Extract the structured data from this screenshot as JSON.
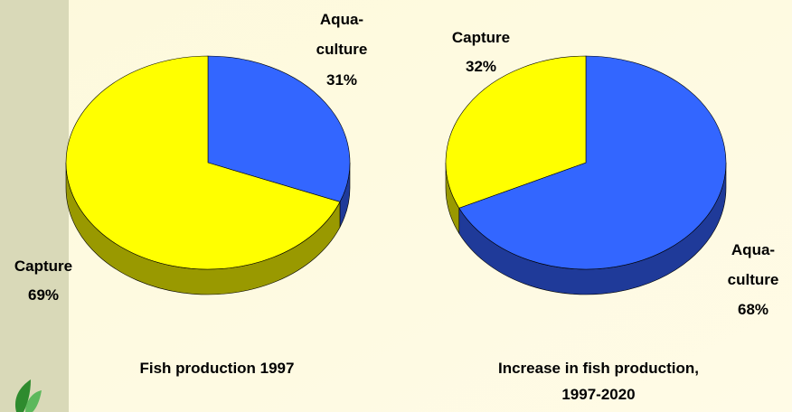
{
  "chart_data": [
    {
      "type": "pie",
      "title": "Fish production 1997",
      "categories": [
        "Aqua-\nculture",
        "Capture"
      ],
      "values": [
        31,
        69
      ],
      "value_labels": [
        "31%",
        "69%"
      ],
      "colors": [
        "#3366ff",
        "#ffff00"
      ],
      "side_colors": [
        "#1f3a99",
        "#999900"
      ]
    },
    {
      "type": "pie",
      "title": "Increase in fish production,\n1997-2020",
      "categories": [
        "Aqua-\nculture",
        "Capture"
      ],
      "values": [
        68,
        32
      ],
      "value_labels": [
        "68%",
        "32%"
      ],
      "colors": [
        "#3366ff",
        "#ffff00"
      ],
      "side_colors": [
        "#1f3a99",
        "#999900"
      ]
    }
  ]
}
